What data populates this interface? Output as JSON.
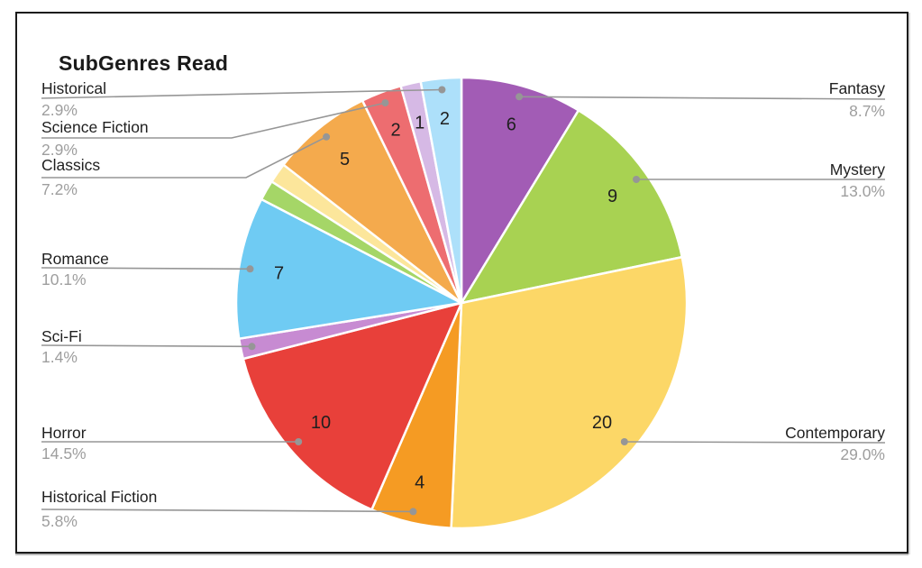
{
  "chart_data": {
    "type": "pie",
    "title": "SubGenres Read",
    "total": 69,
    "start_angle_deg": -90,
    "direction": "clockwise",
    "legend_position": "callout-labels",
    "slices": [
      {
        "label": "Fantasy",
        "value": 6,
        "pct": "8.7%",
        "color": "#a25cb5",
        "show_value": true,
        "callout": "right"
      },
      {
        "label": "Mystery",
        "value": 9,
        "pct": "13.0%",
        "color": "#a8d252",
        "show_value": true,
        "callout": "right"
      },
      {
        "label": "Contemporary",
        "value": 20,
        "pct": "29.0%",
        "color": "#fcd767",
        "show_value": true,
        "callout": "right"
      },
      {
        "label": "Historical Fiction",
        "value": 4,
        "pct": "5.8%",
        "color": "#f59b23",
        "show_value": true,
        "callout": "left"
      },
      {
        "label": "Horror",
        "value": 10,
        "pct": "14.5%",
        "color": "#e8403a",
        "show_value": true,
        "callout": "left"
      },
      {
        "label": "Sci-Fi",
        "value": 1,
        "pct": "1.4%",
        "color": "#c78bd2",
        "show_value": false,
        "callout": "left"
      },
      {
        "label": "Romance",
        "value": 7,
        "pct": "10.1%",
        "color": "#6fcbf3",
        "show_value": true,
        "callout": "left"
      },
      {
        "label": "",
        "value": 1,
        "pct": "",
        "color": "#a5d667",
        "show_value": false,
        "callout": "none"
      },
      {
        "label": "",
        "value": 1,
        "pct": "",
        "color": "#fce69b",
        "show_value": false,
        "callout": "none"
      },
      {
        "label": "Classics",
        "value": 5,
        "pct": "7.2%",
        "color": "#f4aa4d",
        "show_value": true,
        "callout": "left"
      },
      {
        "label": "Science Fiction",
        "value": 2,
        "pct": "2.9%",
        "color": "#ed6d70",
        "show_value": true,
        "callout": "left"
      },
      {
        "label": "",
        "value": 1,
        "pct": "",
        "color": "#d6b9e5",
        "show_value": true,
        "callout": "none"
      },
      {
        "label": "Historical",
        "value": 2,
        "pct": "2.9%",
        "color": "#ade0fa",
        "show_value": true,
        "callout": "left"
      }
    ]
  },
  "colors": {
    "card_border": "#1a1a1a",
    "background": "#ffffff",
    "callout_line": "#969696",
    "callout_dot": "#969696",
    "label_text": "#1f1f1f",
    "percent_text": "#9e9e9e",
    "slice_value_text": "#1f1f1f",
    "slice_gap_stroke": "#ffffff"
  }
}
